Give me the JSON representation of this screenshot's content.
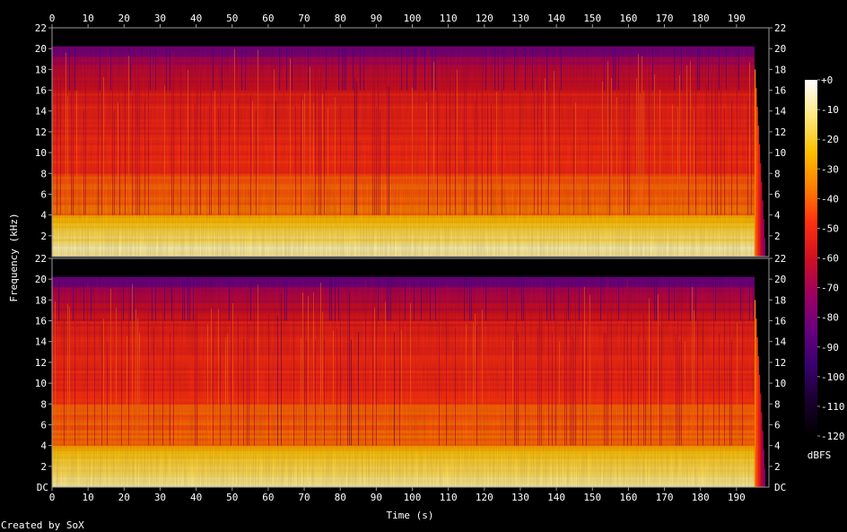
{
  "chart_data": {
    "type": "heatmap",
    "subtype": "spectrogram",
    "xlabel": "Time (s)",
    "ylabel": "Frequency (kHz)",
    "colorbar_label": "dBFS",
    "footer": "Created by SoX",
    "x_ticks": [
      0,
      10,
      20,
      30,
      40,
      50,
      60,
      70,
      80,
      90,
      100,
      110,
      120,
      130,
      140,
      150,
      160,
      170,
      180,
      190
    ],
    "x_range": [
      0,
      199
    ],
    "y_ticks": [
      2,
      4,
      6,
      8,
      10,
      12,
      14,
      16,
      18,
      20,
      22
    ],
    "y_bottom_label": "DC",
    "y_range_khz": [
      0,
      22
    ],
    "colorbar_ticks": [
      "+0",
      "-10",
      "-20",
      "-30",
      "-40",
      "-50",
      "-60",
      "-70",
      "-80",
      "-90",
      "-100",
      "-110",
      "-120"
    ],
    "colorbar_range_dbfs": [
      -120,
      0
    ],
    "channels": [
      {
        "name": "",
        "audio_end_s": 195,
        "energy_rolloff_khz": 20
      },
      {
        "name": "",
        "audio_end_s": 195,
        "energy_rolloff_khz": 20
      }
    ],
    "colors": {
      "background": "#000000",
      "axis": "#9a9a9a",
      "text": "#ffffff",
      "colormap": [
        "#000000",
        "#1a0030",
        "#3a0070",
        "#6a0080",
        "#a00060",
        "#d01020",
        "#ff3010",
        "#ff8000",
        "#ffc000",
        "#ffe880",
        "#ffffff"
      ]
    }
  }
}
